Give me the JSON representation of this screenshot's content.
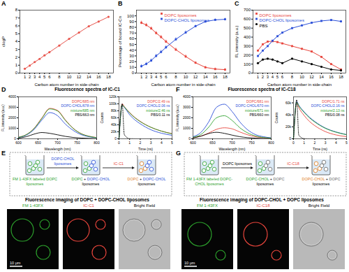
{
  "chart_data": [
    {
      "panel_label": "A",
      "type": "line",
      "x_label": "Carbon atom number in side-chain",
      "y_label": "clogP",
      "x": [
        1,
        2,
        3,
        4,
        5,
        6,
        8,
        10,
        12,
        14,
        16,
        18
      ],
      "xlim": [
        0,
        19
      ],
      "xticks": [
        1,
        2,
        3,
        4,
        5,
        6,
        8,
        10,
        12,
        14,
        16,
        18
      ],
      "ylim": [
        0,
        8
      ],
      "yticks": [
        0,
        1,
        2,
        3,
        4,
        5,
        6,
        7,
        8
      ],
      "series": [
        {
          "color": "#e8574f",
          "marker": "circle",
          "values": [
            0.55,
            0.95,
            1.4,
            1.8,
            2.25,
            2.65,
            3.5,
            4.35,
            5.15,
            5.95,
            6.55,
            7.15
          ]
        }
      ]
    },
    {
      "panel_label": "B",
      "type": "line",
      "x_label": "Carbon atom number in side-chain",
      "y_label": "Percentage of bound IC-Cn",
      "x": [
        1,
        2,
        3,
        4,
        5,
        6,
        8,
        10,
        12,
        14,
        16,
        18
      ],
      "xlim": [
        0,
        19
      ],
      "xticks": [
        1,
        2,
        3,
        4,
        5,
        6,
        8,
        10,
        12,
        14,
        16,
        18
      ],
      "ylim": [
        0,
        110
      ],
      "yticks": [
        0,
        10,
        20,
        30,
        40,
        50,
        60,
        70,
        80,
        90,
        100
      ],
      "legend": "top",
      "series": [
        {
          "name": "DOPC liposomes",
          "color": "#e8453c",
          "marker": "square",
          "values": [
            88,
            84,
            78,
            70,
            63,
            55,
            41,
            29,
            18,
            10,
            7,
            6
          ],
          "errors": [
            3,
            3,
            3,
            3,
            3,
            3,
            3,
            3,
            2,
            2,
            2,
            2
          ]
        },
        {
          "name": "DOPC-CHOL liposomes",
          "color": "#2b4fd8",
          "marker": "square",
          "values": [
            12,
            16,
            22,
            30,
            37,
            45,
            59,
            71,
            82,
            90,
            93,
            94
          ],
          "errors": [
            3,
            3,
            3,
            3,
            3,
            3,
            3,
            3,
            2,
            2,
            2,
            2
          ]
        }
      ]
    },
    {
      "panel_label": "C",
      "type": "line",
      "x_label": "Carbon atom number in side-chain",
      "y_label": "FL intensity (a.u.)",
      "x": [
        1,
        2,
        3,
        4,
        5,
        6,
        8,
        10,
        12,
        14,
        16,
        18
      ],
      "xlim": [
        0,
        19
      ],
      "xticks": [
        1,
        2,
        3,
        4,
        5,
        6,
        8,
        10,
        12,
        14,
        16,
        18
      ],
      "ylim": [
        0,
        700
      ],
      "yticks": [
        0,
        100,
        200,
        300,
        400,
        500,
        600,
        700
      ],
      "legend": "top-left",
      "series": [
        {
          "name": "DOPC liposomes",
          "color": "#e8453c",
          "marker": "square",
          "values": [
            250,
            320,
            350,
            355,
            345,
            330,
            300,
            270,
            240,
            180,
            100,
            40
          ]
        },
        {
          "name": "DOPC-CHOL liposomes",
          "color": "#2b4fd8",
          "marker": "square",
          "values": [
            190,
            250,
            300,
            360,
            410,
            450,
            500,
            530,
            560,
            580,
            590,
            575
          ]
        },
        {
          "name": "PBS",
          "color": "#000000",
          "marker": "circle",
          "values": [
            110,
            150,
            160,
            150,
            130,
            110,
            160,
            130,
            100,
            70,
            40,
            30
          ]
        }
      ]
    },
    {
      "panel_label": "D",
      "type": "line",
      "title": "Fluorescence spectra of IC-C1",
      "x_label": "Wavelength (nm)",
      "y_label": "FL intensity (a.u.)",
      "x": [
        600,
        620,
        640,
        660,
        680,
        700,
        720,
        740,
        760,
        780,
        800
      ],
      "xlim": [
        600,
        800
      ],
      "xticks": [
        600,
        650,
        700,
        750,
        800
      ],
      "ylim": [
        0,
        4000
      ],
      "yticks": [
        0,
        1000,
        2000,
        3000,
        4000
      ],
      "legend": "top-right",
      "series": [
        {
          "name": "DOPC/685 nm",
          "color": "#e8453c",
          "values": [
            150,
            400,
            1000,
            2000,
            2900,
            2700,
            1800,
            1000,
            500,
            250,
            120
          ]
        },
        {
          "name": "DOPC-CHOL/678 nm",
          "color": "#2b4fd8",
          "values": [
            120,
            350,
            900,
            1800,
            2500,
            2200,
            1400,
            800,
            400,
            200,
            100
          ]
        },
        {
          "name": "mixture/685 nm",
          "color": "#2ca02c",
          "values": [
            140,
            390,
            980,
            1950,
            2850,
            2650,
            1750,
            980,
            490,
            240,
            110
          ]
        },
        {
          "name": "PBS/663 nm",
          "color": "#000000",
          "values": [
            60,
            200,
            450,
            600,
            520,
            380,
            230,
            130,
            70,
            40,
            20
          ]
        }
      ]
    },
    {
      "type": "line",
      "x_label": "Time (ns)",
      "y_label": "Counts",
      "x": [
        0,
        0.3,
        0.5,
        1,
        1.5,
        2,
        3,
        4,
        5
      ],
      "xlim": [
        0,
        5
      ],
      "xticks": [
        0,
        1,
        2,
        3,
        4,
        5
      ],
      "ylim": [
        0,
        120000
      ],
      "yticks": [
        0,
        {
          "value": 20000,
          "label": "20k"
        },
        {
          "value": 40000,
          "label": "40k"
        },
        {
          "value": 60000,
          "label": "60k"
        },
        {
          "value": 80000,
          "label": "80k"
        },
        {
          "value": 100000,
          "label": "100k"
        },
        {
          "value": 120000,
          "label": "120k"
        }
      ],
      "legend": "top-right",
      "series": [
        {
          "name": "DOPC/2.49 ns",
          "color": "#e8453c",
          "values": [
            0,
            100000,
            92000,
            75000,
            61000,
            50000,
            33000,
            22000,
            15000
          ]
        },
        {
          "name": "DOPC-CHOL/2.06 ns",
          "color": "#2b4fd8",
          "values": [
            0,
            96000,
            90000,
            69000,
            54000,
            43000,
            26000,
            16000,
            10000
          ]
        },
        {
          "name": "mixture/2.46 ns",
          "color": "#2ca02c",
          "values": [
            0,
            97000,
            91000,
            74000,
            60000,
            49000,
            33000,
            22000,
            14000
          ]
        },
        {
          "name": "PBS/0.11 ns",
          "color": "#000000",
          "line_style": "dotted",
          "values": [
            0,
            100000,
            12000,
            500,
            200,
            100,
            100,
            100,
            100
          ]
        }
      ]
    },
    {
      "panel_label": "F",
      "type": "line",
      "title": "Fluorescence spectra of IC-C18",
      "x_label": "Wavelength (nm)",
      "y_label": "FL intensity (a.u.)",
      "x": [
        600,
        620,
        640,
        660,
        680,
        700,
        720,
        740,
        760,
        780,
        800
      ],
      "xlim": [
        600,
        800
      ],
      "xticks": [
        600,
        650,
        700,
        750,
        800
      ],
      "ylim": [
        0,
        4000
      ],
      "yticks": [
        0,
        1000,
        2000,
        3000,
        4000
      ],
      "legend": "top-right",
      "series": [
        {
          "name": "DOPC/681 nm",
          "color": "#e8453c",
          "values": [
            100,
            250,
            550,
            900,
            1050,
            950,
            650,
            380,
            200,
            100,
            50
          ]
        },
        {
          "name": "DOPC-CHOL/670 nm",
          "color": "#2b4fd8",
          "values": [
            200,
            600,
            1600,
            3000,
            3300,
            2600,
            1600,
            850,
            400,
            200,
            90
          ]
        },
        {
          "name": "mixture/671 nm",
          "color": "#2ca02c",
          "values": [
            150,
            400,
            1100,
            2000,
            2200,
            1750,
            1050,
            560,
            270,
            130,
            60
          ]
        },
        {
          "name": "PBS/660 nm",
          "color": "#000000",
          "values": [
            80,
            250,
            500,
            620,
            520,
            350,
            200,
            110,
            60,
            30,
            15
          ]
        }
      ]
    },
    {
      "type": "line",
      "x_label": "Time (ns)",
      "y_label": "Counts",
      "x": [
        0,
        0.3,
        0.5,
        1,
        1.5,
        2,
        3,
        4,
        5
      ],
      "xlim": [
        0,
        5
      ],
      "xticks": [
        0,
        1,
        2,
        3,
        4,
        5
      ],
      "ylim": [
        0,
        70000
      ],
      "yticks": [
        0,
        {
          "value": 20000,
          "label": "20k"
        },
        {
          "value": 40000,
          "label": "40k"
        },
        {
          "value": 60000,
          "label": "60k"
        }
      ],
      "legend": "top-right",
      "series": [
        {
          "name": "DOPC/1.71 ns",
          "color": "#e8453c",
          "values": [
            0,
            60000,
            52000,
            39000,
            29000,
            22000,
            12000,
            6500,
            3500
          ]
        },
        {
          "name": "DOPC-CHOL/2.16 ns",
          "color": "#2b4fd8",
          "values": [
            0,
            62000,
            56000,
            45000,
            36000,
            29000,
            18000,
            11500,
            7000
          ]
        },
        {
          "name": "mixture/2.13 ns",
          "color": "#2ca02c",
          "values": [
            0,
            61000,
            55000,
            44000,
            35000,
            28000,
            17500,
            11000,
            6800
          ]
        },
        {
          "name": "PBS/0.08 ns",
          "color": "#000000",
          "line_style": "dotted",
          "values": [
            0,
            65000,
            6000,
            300,
            100,
            100,
            100,
            100,
            100
          ]
        }
      ]
    }
  ],
  "diagrams": [
    {
      "panel_label": "E",
      "beakers": [
        {
          "label": [
            {
              "text": "FM 1-43FX labeled DOPC liposomes",
              "color": "#2ca02c"
            }
          ]
        },
        {
          "label": [
            {
              "text": "DOPC",
              "color": "#2ca02c"
            },
            {
              "text": " + ",
              "color": "#000000"
            },
            {
              "text": "DOPC-CHOL",
              "color": "#2b4fd8"
            },
            {
              "text": " liposomes",
              "color": "#000000"
            }
          ]
        },
        {
          "label": [
            {
              "text": "DOPC",
              "color": "#e07b1a"
            },
            {
              "text": " + ",
              "color": "#000000"
            },
            {
              "text": "DOPC-CHOL",
              "color": "#2b4fd8"
            },
            {
              "text": " liposomes",
              "color": "#000000"
            }
          ]
        }
      ],
      "arrows": [
        {
          "label": "DOPC-CHOL liposomes",
          "color": "#2b4fd8"
        },
        {
          "label": "IC-C1",
          "color": "#e8453c"
        }
      ],
      "imaging_title": "Fluorescence imaging of DOPC + DOPC-CHOL liposomes",
      "images": [
        {
          "label": "FM 1-43FX",
          "color": "#2ca02c"
        },
        {
          "label": "IC-C1",
          "color": "#e8453c"
        },
        {
          "label": "Bright Field",
          "color": "#000000"
        }
      ],
      "scale_bar": "10 μm"
    },
    {
      "panel_label": "G",
      "beakers": [
        {
          "label": [
            {
              "text": "FM 1-43FX labeled DOPC-CHOL liposomes",
              "color": "#2ca02c"
            }
          ]
        },
        {
          "label": [
            {
              "text": "DOPC-CHOL",
              "color": "#2ca02c"
            },
            {
              "text": " + ",
              "color": "#000000"
            },
            {
              "text": "DOPC",
              "color": "#666666"
            },
            {
              "text": " liposomes",
              "color": "#000000"
            }
          ]
        },
        {
          "label": [
            {
              "text": "DOPC-CHOL",
              "color": "#e07b1a"
            },
            {
              "text": " + ",
              "color": "#000000"
            },
            {
              "text": "DOPC",
              "color": "#666666"
            },
            {
              "text": " liposomes",
              "color": "#000000"
            }
          ]
        }
      ],
      "arrows": [
        {
          "label": "DOPC liposomes",
          "color": "#000000"
        },
        {
          "label": "IC-C18",
          "color": "#e8453c"
        }
      ],
      "imaging_title": "Fluorescence imaging of DOPC-CHOL + DOPC liposomes",
      "images": [
        {
          "label": "FM 1-43FX",
          "color": "#2ca02c"
        },
        {
          "label": "IC-C18",
          "color": "#e8453c"
        },
        {
          "label": "Bright Field",
          "color": "#000000"
        }
      ],
      "scale_bar": "10 μm"
    }
  ]
}
